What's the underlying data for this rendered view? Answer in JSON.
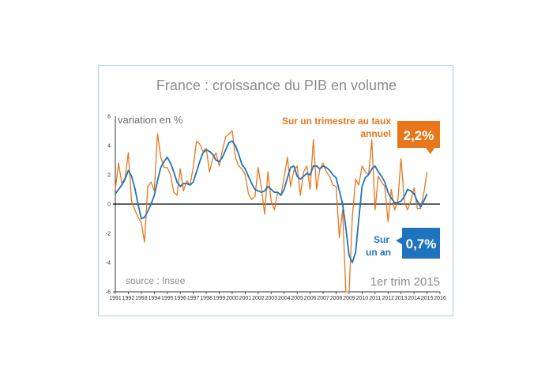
{
  "chart_data": {
    "type": "line",
    "title": "France : croissance du PIB en volume",
    "ylabel": "variation en %",
    "source": "source : Insee",
    "period_note": "1er trim 2015",
    "ylim": [
      -6,
      6
    ],
    "yticks": [
      "6",
      "4",
      "2",
      "0",
      "-2",
      "-4",
      "-6"
    ],
    "ytick_values": [
      6,
      4,
      2,
      0,
      -2,
      -4,
      -6
    ],
    "xlim": [
      1991,
      2016
    ],
    "xticks": [
      "1991",
      "1992",
      "1993",
      "1994",
      "1995",
      "1996",
      "1997",
      "1998",
      "1999",
      "2000",
      "2001",
      "2002",
      "2003",
      "2004",
      "2005",
      "2006",
      "2007",
      "2008",
      "2009",
      "2010",
      "2011",
      "2012",
      "2013",
      "2014",
      "2015",
      "2016"
    ],
    "xtick_values": [
      1991,
      1992,
      1993,
      1994,
      1995,
      1996,
      1997,
      1998,
      1999,
      2000,
      2001,
      2002,
      2003,
      2004,
      2005,
      2006,
      2007,
      2008,
      2009,
      2010,
      2011,
      2012,
      2013,
      2014,
      2015,
      2016
    ],
    "grid": false,
    "series": [
      {
        "name": "Sur un trimestre au taux annuel",
        "color": "#e8761a",
        "x": [
          1991.0,
          1991.25,
          1991.5,
          1991.75,
          1992.0,
          1992.25,
          1992.5,
          1992.75,
          1993.0,
          1993.25,
          1993.5,
          1993.75,
          1994.0,
          1994.25,
          1994.5,
          1994.75,
          1995.0,
          1995.25,
          1995.5,
          1995.75,
          1996.0,
          1996.25,
          1996.5,
          1996.75,
          1997.0,
          1997.25,
          1997.5,
          1997.75,
          1998.0,
          1998.25,
          1998.5,
          1998.75,
          1999.0,
          1999.25,
          1999.5,
          1999.75,
          2000.0,
          2000.25,
          2000.5,
          2000.75,
          2001.0,
          2001.25,
          2001.5,
          2001.75,
          2002.0,
          2002.25,
          2002.5,
          2002.75,
          2003.0,
          2003.25,
          2003.5,
          2003.75,
          2004.0,
          2004.25,
          2004.5,
          2004.75,
          2005.0,
          2005.25,
          2005.5,
          2005.75,
          2006.0,
          2006.25,
          2006.5,
          2006.75,
          2007.0,
          2007.25,
          2007.5,
          2007.75,
          2008.0,
          2008.25,
          2008.5,
          2008.75,
          2009.0,
          2009.25,
          2009.5,
          2009.75,
          2010.0,
          2010.25,
          2010.5,
          2010.75,
          2011.0,
          2011.25,
          2011.5,
          2011.75,
          2012.0,
          2012.25,
          2012.5,
          2012.75,
          2013.0,
          2013.25,
          2013.5,
          2013.75,
          2014.0,
          2014.25,
          2014.5,
          2014.75,
          2015.0
        ],
        "values": [
          1.0,
          2.8,
          1.4,
          1.8,
          3.5,
          0.2,
          -0.4,
          -0.9,
          -1.3,
          -2.6,
          1.2,
          1.5,
          0.9,
          4.8,
          3.2,
          2.5,
          2.5,
          2.0,
          0.8,
          0.6,
          2.4,
          0.9,
          1.6,
          1.3,
          2.5,
          4.3,
          4.1,
          3.6,
          3.8,
          2.2,
          3.1,
          3.5,
          2.6,
          3.7,
          4.6,
          4.8,
          5.0,
          3.2,
          2.6,
          2.4,
          2.0,
          0.7,
          0.3,
          0.5,
          2.5,
          1.1,
          -0.7,
          2.2,
          0.2,
          -0.4,
          0.8,
          0.6,
          1.8,
          3.2,
          1.2,
          2.3,
          2.6,
          0.6,
          2.2,
          2.6,
          1.0,
          4.4,
          1.0,
          2.4,
          2.8,
          2.2,
          1.9,
          1.3,
          1.2,
          -2.3,
          -0.4,
          -6.0,
          -6.0,
          -0.9,
          1.7,
          1.3,
          2.6,
          2.2,
          2.0,
          4.4,
          -0.4,
          1.9,
          1.5,
          1.2,
          -1.2,
          1.0,
          -0.4,
          0.2,
          3.1,
          0.2,
          -0.4,
          0.2,
          1.1,
          -0.3,
          -0.3,
          0.7,
          2.2
        ]
      },
      {
        "name": "Sur un an",
        "color": "#1e73be",
        "x": [
          1991.0,
          1991.25,
          1991.5,
          1991.75,
          1992.0,
          1992.25,
          1992.5,
          1992.75,
          1993.0,
          1993.25,
          1993.5,
          1993.75,
          1994.0,
          1994.25,
          1994.5,
          1994.75,
          1995.0,
          1995.25,
          1995.5,
          1995.75,
          1996.0,
          1996.25,
          1996.5,
          1996.75,
          1997.0,
          1997.25,
          1997.5,
          1997.75,
          1998.0,
          1998.25,
          1998.5,
          1998.75,
          1999.0,
          1999.25,
          1999.5,
          1999.75,
          2000.0,
          2000.25,
          2000.5,
          2000.75,
          2001.0,
          2001.25,
          2001.5,
          2001.75,
          2002.0,
          2002.25,
          2002.5,
          2002.75,
          2003.0,
          2003.25,
          2003.5,
          2003.75,
          2004.0,
          2004.25,
          2004.5,
          2004.75,
          2005.0,
          2005.25,
          2005.5,
          2005.75,
          2006.0,
          2006.25,
          2006.5,
          2006.75,
          2007.0,
          2007.25,
          2007.5,
          2007.75,
          2008.0,
          2008.25,
          2008.5,
          2008.75,
          2009.0,
          2009.25,
          2009.5,
          2009.75,
          2010.0,
          2010.25,
          2010.5,
          2010.75,
          2011.0,
          2011.25,
          2011.5,
          2011.75,
          2012.0,
          2012.25,
          2012.5,
          2012.75,
          2013.0,
          2013.25,
          2013.5,
          2013.75,
          2014.0,
          2014.25,
          2014.5,
          2014.75,
          2015.0
        ],
        "values": [
          0.7,
          1.0,
          1.3,
          1.7,
          2.3,
          1.9,
          1.1,
          0.0,
          -1.0,
          -0.9,
          -0.5,
          0.0,
          0.6,
          1.6,
          2.5,
          2.9,
          3.2,
          2.8,
          2.2,
          1.5,
          1.2,
          1.4,
          1.4,
          1.3,
          1.5,
          2.2,
          2.9,
          3.5,
          3.7,
          3.6,
          3.4,
          3.0,
          2.9,
          3.2,
          3.7,
          4.2,
          4.3,
          4.0,
          3.4,
          2.7,
          2.4,
          1.9,
          1.4,
          1.0,
          0.9,
          0.8,
          0.9,
          1.2,
          1.0,
          0.8,
          0.8,
          0.6,
          1.0,
          1.8,
          2.5,
          2.6,
          1.9,
          1.7,
          1.9,
          2.1,
          2.0,
          2.6,
          2.6,
          2.4,
          2.6,
          2.5,
          2.3,
          2.0,
          1.8,
          0.9,
          0.0,
          -1.6,
          -3.5,
          -4.0,
          -3.3,
          -1.0,
          1.2,
          1.8,
          2.0,
          2.4,
          2.6,
          2.2,
          1.9,
          1.5,
          0.8,
          0.4,
          0.1,
          0.1,
          0.2,
          0.5,
          1.0,
          0.9,
          0.7,
          0.2,
          -0.2,
          0.2,
          0.7
        ]
      }
    ],
    "annotations": {
      "quarterly_line1": "Sur un trimestre au taux",
      "quarterly_line2": "annuel",
      "quarterly_value": "2,2%",
      "annual_line1": "Sur",
      "annual_line2": "un an",
      "annual_value": "0,7%"
    }
  }
}
